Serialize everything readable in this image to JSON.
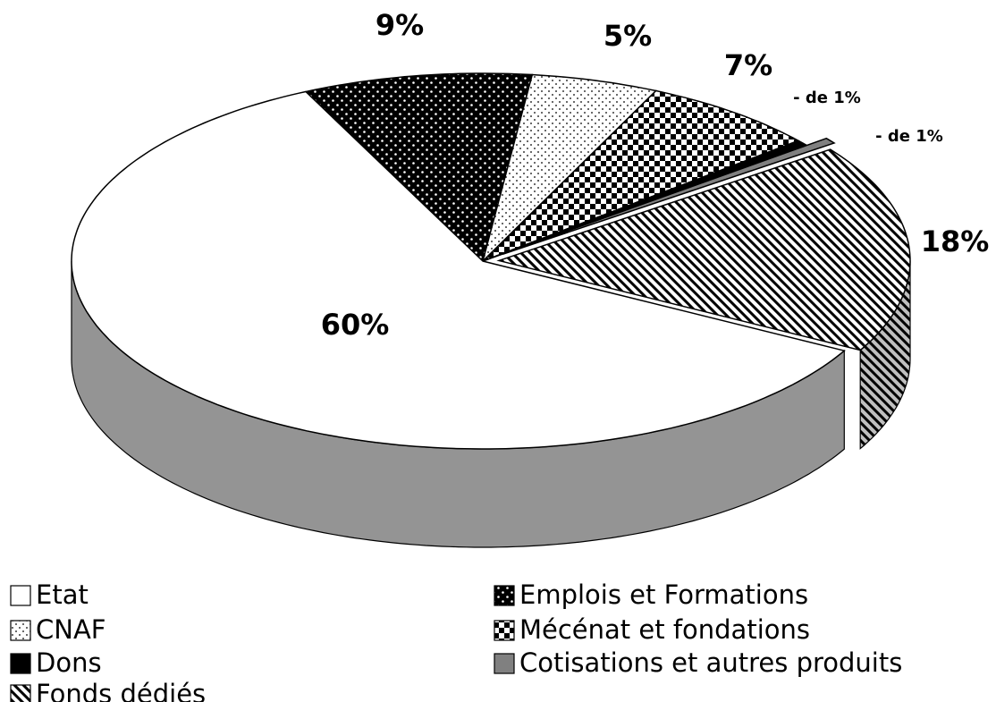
{
  "chart_data": {
    "type": "pie",
    "categories": [
      "Emplois et Formations",
      "CNAF",
      "Mécénat et fondations",
      "Dons",
      "Cotisations et autres produits",
      "Fonds dédiés",
      "Etat"
    ],
    "values": [
      9,
      5,
      7,
      0.5,
      0.5,
      18,
      60
    ],
    "value_labels": [
      "9%",
      "5%",
      "7%",
      "- de 1%",
      "- de 1%",
      "18%",
      "60%"
    ],
    "legend": true
  }
}
